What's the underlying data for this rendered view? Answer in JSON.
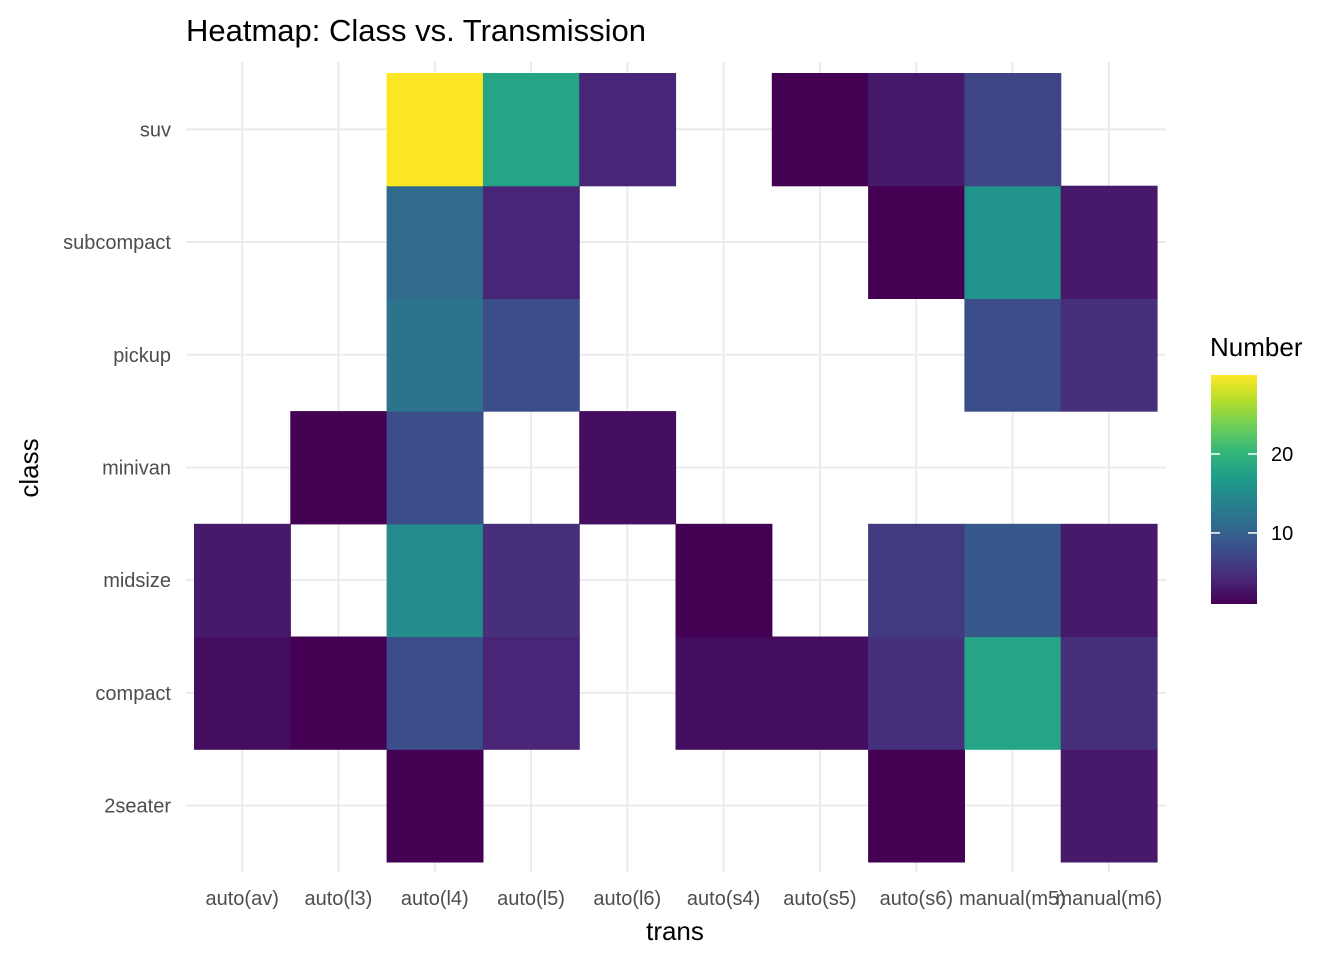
{
  "chart_data": {
    "type": "heatmap",
    "title": "Heatmap: Class vs. Transmission",
    "xlabel": "trans",
    "ylabel": "class",
    "x_categories": [
      "auto(av)",
      "auto(l3)",
      "auto(l4)",
      "auto(l5)",
      "auto(l6)",
      "auto(s4)",
      "auto(s5)",
      "auto(s6)",
      "manual(m5)",
      "manual(m6)"
    ],
    "y_categories": [
      "2seater",
      "compact",
      "midsize",
      "minivan",
      "pickup",
      "subcompact",
      "suv"
    ],
    "cells": [
      {
        "x": "auto(l4)",
        "y": "2seater",
        "value": 1
      },
      {
        "x": "auto(s6)",
        "y": "2seater",
        "value": 1
      },
      {
        "x": "manual(m6)",
        "y": "2seater",
        "value": 3
      },
      {
        "x": "auto(av)",
        "y": "compact",
        "value": 2
      },
      {
        "x": "auto(l3)",
        "y": "compact",
        "value": 1
      },
      {
        "x": "auto(l4)",
        "y": "compact",
        "value": 8
      },
      {
        "x": "auto(l5)",
        "y": "compact",
        "value": 4
      },
      {
        "x": "auto(s4)",
        "y": "compact",
        "value": 2
      },
      {
        "x": "auto(s5)",
        "y": "compact",
        "value": 2
      },
      {
        "x": "auto(s6)",
        "y": "compact",
        "value": 5
      },
      {
        "x": "manual(m5)",
        "y": "compact",
        "value": 18
      },
      {
        "x": "manual(m6)",
        "y": "compact",
        "value": 5
      },
      {
        "x": "auto(av)",
        "y": "midsize",
        "value": 3
      },
      {
        "x": "auto(l4)",
        "y": "midsize",
        "value": 15
      },
      {
        "x": "auto(l5)",
        "y": "midsize",
        "value": 5
      },
      {
        "x": "auto(s4)",
        "y": "midsize",
        "value": 1
      },
      {
        "x": "auto(s6)",
        "y": "midsize",
        "value": 6
      },
      {
        "x": "manual(m5)",
        "y": "midsize",
        "value": 9
      },
      {
        "x": "manual(m6)",
        "y": "midsize",
        "value": 3
      },
      {
        "x": "auto(l3)",
        "y": "minivan",
        "value": 1
      },
      {
        "x": "auto(l4)",
        "y": "minivan",
        "value": 8
      },
      {
        "x": "auto(l6)",
        "y": "minivan",
        "value": 2
      },
      {
        "x": "auto(l4)",
        "y": "pickup",
        "value": 12
      },
      {
        "x": "auto(l5)",
        "y": "pickup",
        "value": 8
      },
      {
        "x": "manual(m5)",
        "y": "pickup",
        "value": 8
      },
      {
        "x": "manual(m6)",
        "y": "pickup",
        "value": 5
      },
      {
        "x": "auto(l4)",
        "y": "subcompact",
        "value": 11
      },
      {
        "x": "auto(l5)",
        "y": "subcompact",
        "value": 4
      },
      {
        "x": "auto(s6)",
        "y": "subcompact",
        "value": 1
      },
      {
        "x": "manual(m5)",
        "y": "subcompact",
        "value": 16
      },
      {
        "x": "manual(m6)",
        "y": "subcompact",
        "value": 3
      },
      {
        "x": "auto(l4)",
        "y": "suv",
        "value": 30
      },
      {
        "x": "auto(l5)",
        "y": "suv",
        "value": 18
      },
      {
        "x": "auto(l6)",
        "y": "suv",
        "value": 4
      },
      {
        "x": "auto(s5)",
        "y": "suv",
        "value": 1
      },
      {
        "x": "auto(s6)",
        "y": "suv",
        "value": 3
      },
      {
        "x": "manual(m5)",
        "y": "suv",
        "value": 7
      }
    ],
    "legend": {
      "title": "Number",
      "placement": "right",
      "range": [
        1,
        30
      ],
      "ticks": [
        10,
        20
      ],
      "palette": "viridis"
    },
    "grid": true
  }
}
